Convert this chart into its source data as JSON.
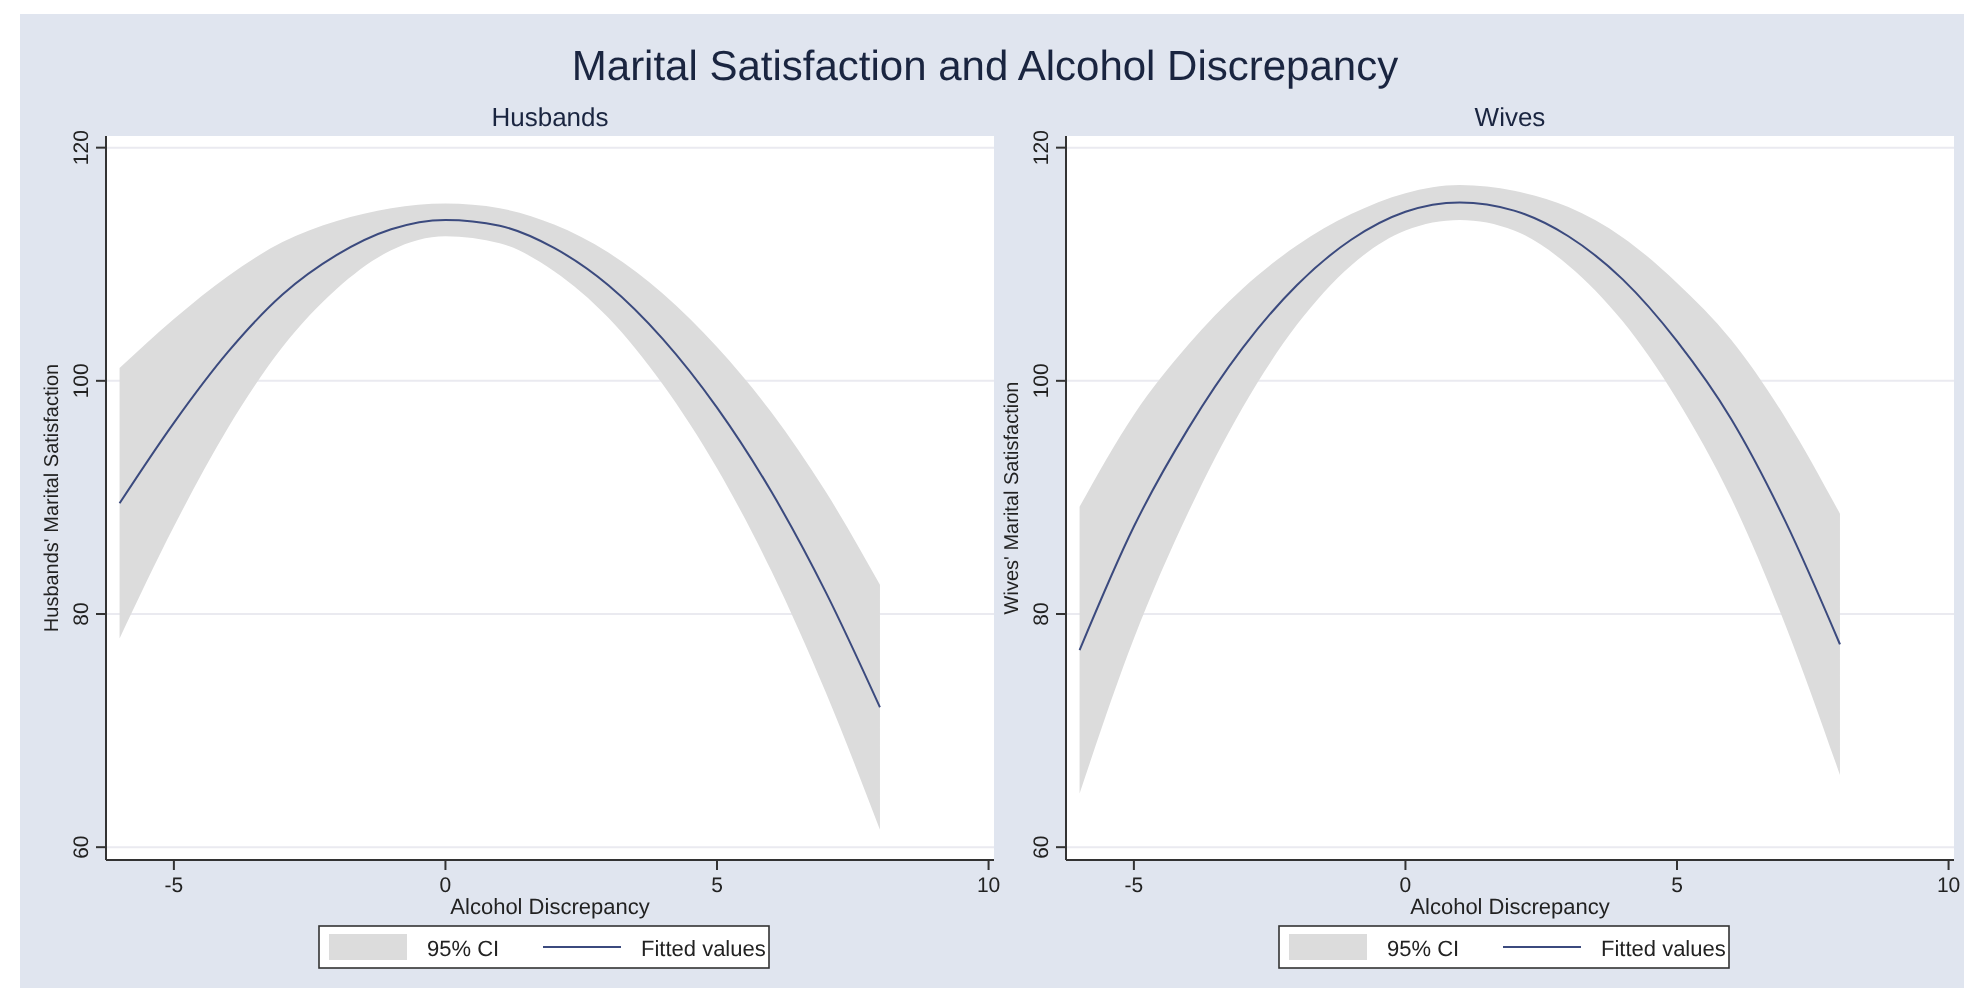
{
  "chart_data": [
    {
      "type": "line",
      "title": "Marital Satisfaction and Alcohol Discrepancy",
      "subtitle": "Husbands",
      "xlabel": "Alcohol Discrepancy",
      "ylabel": "Husbands' Marital Satisfaction",
      "annotations": [
        "95% CI"
      ],
      "x": [
        -6,
        -5,
        -4,
        -3,
        -2,
        -1,
        0,
        1,
        2,
        3,
        4,
        5,
        6,
        7,
        8
      ],
      "series": [
        {
          "name": "Fitted values",
          "color": "#3b4a7e",
          "values": [
            89.5,
            96.4,
            102.5,
            107.4,
            110.8,
            113.0,
            113.8,
            113.3,
            111.4,
            108.2,
            103.6,
            97.7,
            90.5,
            81.9,
            72.0
          ],
          "lower": [
            77.9,
            87.5,
            96.0,
            102.9,
            107.9,
            111.2,
            112.4,
            111.8,
            109.4,
            105.4,
            99.7,
            92.5,
            83.7,
            73.3,
            61.5
          ],
          "upper": [
            101.1,
            105.3,
            109.0,
            111.9,
            113.7,
            114.8,
            115.2,
            114.8,
            113.4,
            111.0,
            107.5,
            102.9,
            97.3,
            90.5,
            82.5
          ]
        }
      ],
      "xlim": [
        -6.25,
        10.1
      ],
      "ylim": [
        58.9,
        121
      ],
      "xticks": [
        -5,
        0,
        5,
        10
      ],
      "yticks": [
        60,
        80,
        100,
        120
      ],
      "grid": "y",
      "legend": "bottom"
    },
    {
      "type": "line",
      "subtitle": "Wives",
      "xlabel": "Alcohol Discrepancy",
      "ylabel": "Wives' Marital Satisfaction",
      "annotations": [
        "95% CI"
      ],
      "x": [
        -6,
        -5,
        -4,
        -3,
        -2,
        -1,
        0,
        1,
        2,
        3,
        4,
        5,
        6,
        7,
        8
      ],
      "series": [
        {
          "name": "Fitted values",
          "color": "#3b4a7e",
          "values": [
            76.9,
            87.5,
            95.9,
            102.8,
            108.2,
            112.1,
            114.5,
            115.3,
            114.6,
            112.4,
            108.7,
            103.4,
            96.7,
            87.9,
            77.4
          ],
          "lower": [
            64.6,
            77.9,
            88.7,
            97.7,
            104.8,
            109.9,
            112.9,
            113.8,
            112.9,
            109.9,
            105.1,
            98.4,
            89.9,
            79.0,
            66.2
          ],
          "upper": [
            89.2,
            97.1,
            103.1,
            107.9,
            111.6,
            114.3,
            116.1,
            116.8,
            116.3,
            114.9,
            112.3,
            108.4,
            103.5,
            96.8,
            88.6
          ]
        }
      ],
      "xlim": [
        -6.25,
        10.1
      ],
      "ylim": [
        58.9,
        121
      ],
      "xticks": [
        -5,
        0,
        5,
        10
      ],
      "yticks": [
        60,
        80,
        100,
        120
      ],
      "grid": "y",
      "legend": "bottom"
    }
  ]
}
